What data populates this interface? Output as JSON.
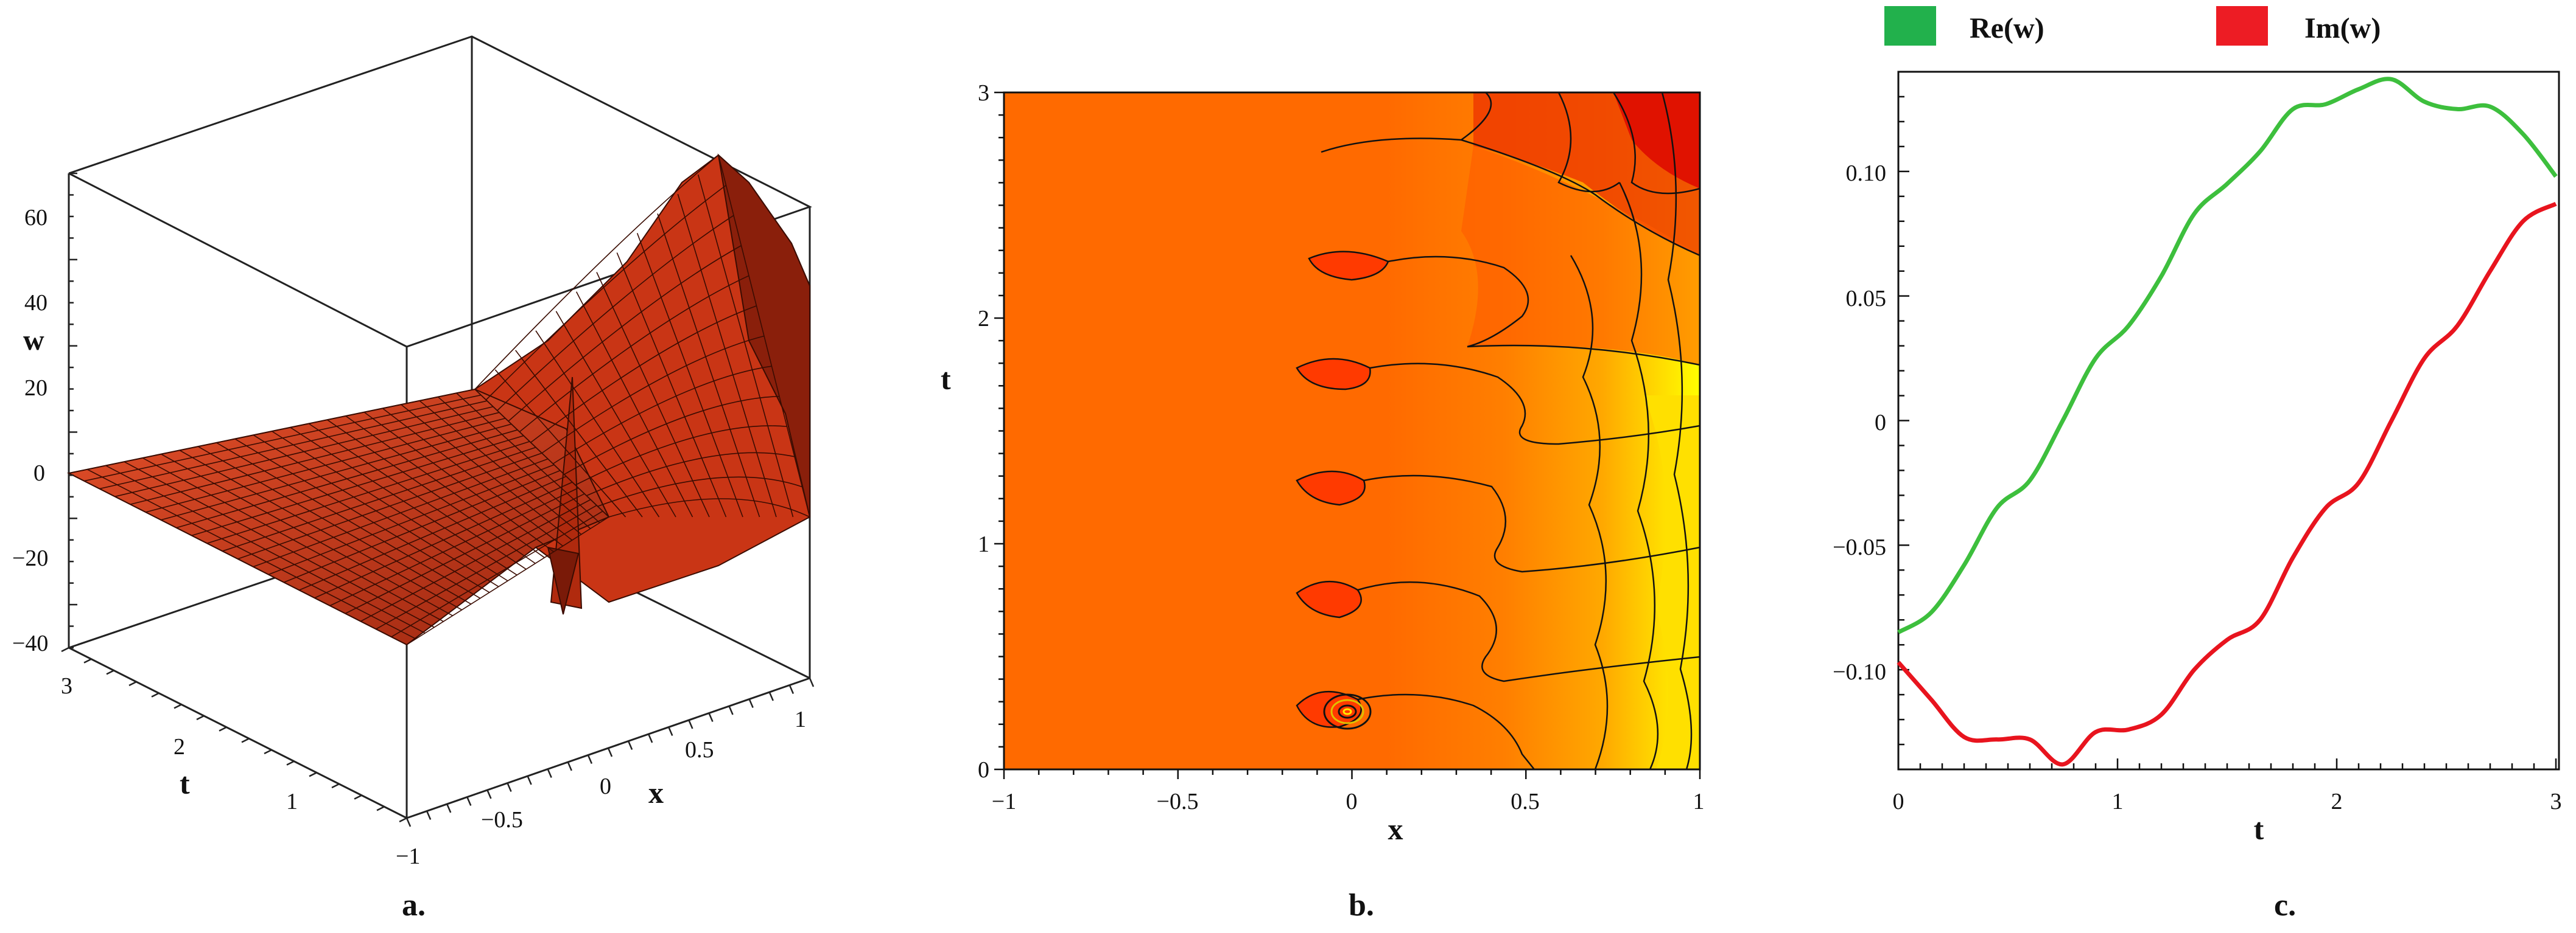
{
  "panels": {
    "a": {
      "caption": "a."
    },
    "b": {
      "caption": "b."
    },
    "c": {
      "caption": "c."
    }
  },
  "colors": {
    "surface": "#d8391a",
    "surface_dark": "#8a1f0b",
    "contour_fill_low": "#ff6a00",
    "contour_fill_high": "#ffff00",
    "re_line": "#3dbf3d",
    "im_line": "#e8141e",
    "legend_re": "#22b14c",
    "legend_im": "#ed1c24"
  },
  "chart_data": [
    {
      "id": "a",
      "type": "surface",
      "title": "",
      "xlabel": "x",
      "ylabel": "t",
      "zlabel": "w",
      "xlim": [
        -1,
        1
      ],
      "ylim": [
        0,
        3
      ],
      "zlim": [
        -40,
        70
      ],
      "z_ticks": [
        "60",
        "40",
        "20",
        "0",
        "−20",
        "−40"
      ],
      "t_ticks": [
        "3",
        "2",
        "1"
      ],
      "x_ticks": [
        "−1",
        "−0.5",
        "0",
        "0.5",
        "1"
      ]
    },
    {
      "id": "b",
      "type": "contour",
      "title": "",
      "xlabel": "x",
      "ylabel": "t",
      "xlim": [
        -1,
        1
      ],
      "ylim": [
        0,
        3
      ],
      "x_ticks": [
        "−1",
        "−0.5",
        "0",
        "0.5",
        "1"
      ],
      "y_ticks": [
        "0",
        "1",
        "2",
        "3"
      ]
    },
    {
      "id": "c",
      "type": "line",
      "title": "",
      "xlabel": "t",
      "ylabel": "",
      "xlim": [
        0,
        3
      ],
      "ylim": [
        -0.14,
        0.14
      ],
      "x_ticks": [
        "0",
        "1",
        "2",
        "3"
      ],
      "y_ticks": [
        "0.10",
        "0.05",
        "0",
        "−0.05",
        "−0.10"
      ],
      "legend": [
        "Re(w)",
        "Im(w)"
      ],
      "series": [
        {
          "name": "Re(w)",
          "x": [
            0,
            0.15,
            0.3,
            0.45,
            0.6,
            0.75,
            0.9,
            1.05,
            1.2,
            1.35,
            1.5,
            1.65,
            1.8,
            1.95,
            2.1,
            2.25,
            2.4,
            2.55,
            2.7,
            2.85,
            3.0
          ],
          "values": [
            -0.085,
            -0.077,
            -0.058,
            -0.035,
            -0.024,
            0.0,
            0.025,
            0.038,
            0.058,
            0.083,
            0.095,
            0.108,
            0.125,
            0.127,
            0.133,
            0.137,
            0.128,
            0.125,
            0.126,
            0.115,
            0.098
          ]
        },
        {
          "name": "Im(w)",
          "x": [
            0,
            0.15,
            0.3,
            0.45,
            0.6,
            0.75,
            0.9,
            1.05,
            1.2,
            1.35,
            1.5,
            1.65,
            1.8,
            1.95,
            2.1,
            2.25,
            2.4,
            2.55,
            2.7,
            2.85,
            3.0
          ],
          "values": [
            -0.097,
            -0.112,
            -0.127,
            -0.128,
            -0.128,
            -0.138,
            -0.125,
            -0.124,
            -0.118,
            -0.1,
            -0.088,
            -0.08,
            -0.055,
            -0.035,
            -0.025,
            0.0,
            0.025,
            0.038,
            0.06,
            0.08,
            0.087
          ]
        }
      ]
    }
  ]
}
